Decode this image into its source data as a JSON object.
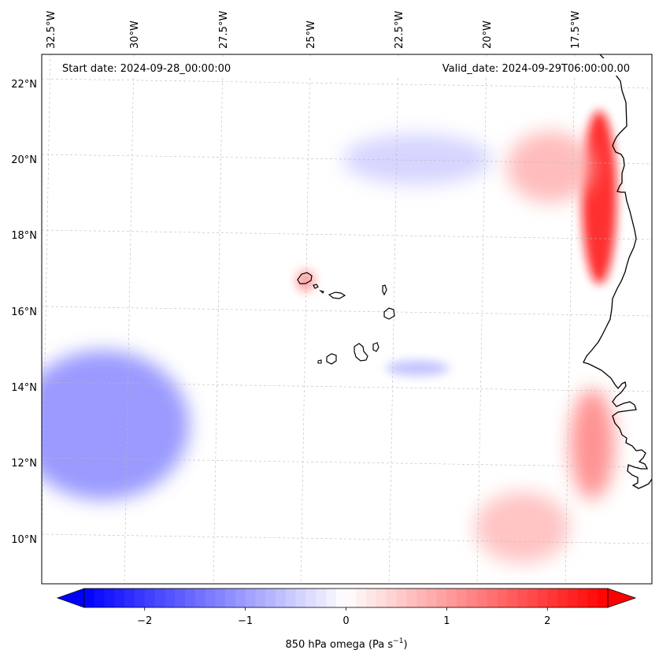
{
  "header": {
    "start_date": "Start date: 2024-09-28_00:00:00",
    "valid_date": "Valid_date: 2024-09-29T06:00:00.00"
  },
  "map": {
    "region": "Eastern tropical Atlantic, Cape Verde and West African coast",
    "longitude_ticks": [
      "32.5°W",
      "30°W",
      "27.5°W",
      "25°W",
      "22.5°W",
      "20°W",
      "17.5°W"
    ],
    "latitude_ticks": [
      "22°N",
      "20°N",
      "18°N",
      "16°N",
      "14°N",
      "12°N",
      "10°N"
    ],
    "gridlines": true,
    "coastline_color": "#000000",
    "land_mask": false
  },
  "colorbar": {
    "label_prefix": "850 hPa omega (Pa s",
    "label_exponent": "−1",
    "label_suffix": ")",
    "ticks": [
      "−2",
      "−1",
      "0",
      "1",
      "2"
    ],
    "range": [
      -2.6,
      2.6
    ],
    "extend": "both",
    "colormap": "bwr",
    "colors": {
      "low": "#0000ff",
      "mid": "#ffffff",
      "high": "#ff0000"
    }
  },
  "chart_data": {
    "type": "heatmap",
    "variable": "850 hPa omega",
    "units": "Pa s^-1",
    "vmin": -2.6,
    "vmax": 2.6,
    "xlabel": "",
    "ylabel": "",
    "grid": true,
    "features": [
      {
        "area": "near the West African coast (~16.5–21°N, ~17–16.5°W)",
        "value": 2.5
      },
      {
        "area": "offshore northeast of coast (~19–20.5°N, ~19–17°W)",
        "value": 0.8
      },
      {
        "area": "southwest region (~11–15°N, ~32.5–29°W)",
        "value": -1.2
      },
      {
        "area": "central band (~14.5°N, ~22.5–21.5°W)",
        "value": -0.7
      },
      {
        "area": "Senegal/Gambia coast (~11–14°N, ~17.5–16.5°W)",
        "value": 1.3
      },
      {
        "area": "northwest of Cape Verde (~16.8°N, ~25°W)",
        "value": 1.1
      },
      {
        "area": "southeast region (~9.5–11°N, ~20–18°W)",
        "value": 0.7
      },
      {
        "area": "north central (~19.5–20.5°N, ~24–20°W)",
        "value": -0.5
      },
      {
        "area": "background",
        "value": 0.0
      }
    ]
  }
}
